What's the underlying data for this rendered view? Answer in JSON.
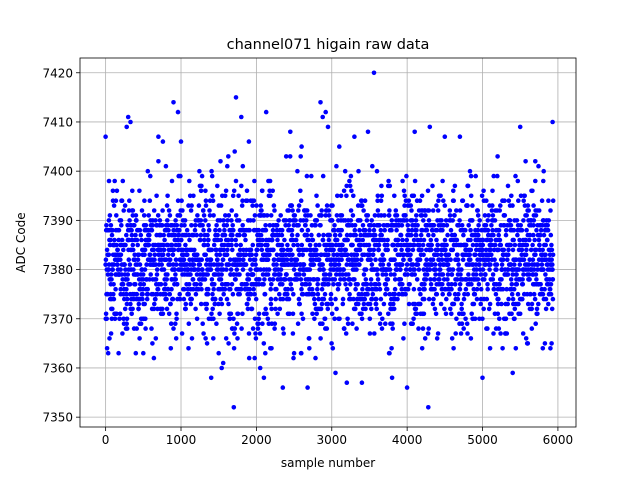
{
  "chart_data": {
    "type": "scatter",
    "title": "channel071 higain raw data",
    "xlabel": "sample number",
    "ylabel": "ADC Code",
    "xlim": [
      -340,
      6240
    ],
    "ylim": [
      7348,
      7423
    ],
    "xticks": [
      0,
      1000,
      2000,
      3000,
      4000,
      5000,
      6000
    ],
    "xtick_labels": [
      "0",
      "1000",
      "2000",
      "3000",
      "4000",
      "5000",
      "6000"
    ],
    "yticks": [
      7350,
      7360,
      7370,
      7380,
      7390,
      7400,
      7410,
      7420
    ],
    "ytick_labels": [
      "7350",
      "7360",
      "7370",
      "7380",
      "7390",
      "7400",
      "7410",
      "7420"
    ],
    "grid": true,
    "marker_color": "#0000ff",
    "series": [
      {
        "marker": "circle",
        "n_samples": 5940,
        "x_step": 1,
        "bulk_mean": 7382,
        "bulk_std": 7,
        "x": [
          0,
          20,
          45,
          75,
          100,
          130,
          165,
          200,
          240,
          280,
          300,
          330,
          360,
          400,
          450,
          500,
          560,
          620,
          700,
          760,
          820,
          880,
          900,
          960,
          1000,
          1100,
          1250,
          1400,
          1500,
          1540,
          1560,
          1600,
          1700,
          1730,
          1750,
          1800,
          1900,
          2000,
          2050,
          2100,
          2130,
          2200,
          2350,
          2450,
          2500,
          2600,
          2680,
          2850,
          2880,
          2920,
          2950,
          3050,
          3100,
          3200,
          3300,
          3400,
          3480,
          3560,
          3600,
          3800,
          3850,
          3950,
          4000,
          4100,
          4200,
          4280,
          4300,
          4500,
          4700,
          4800,
          5000,
          5100,
          5200,
          5400,
          5500,
          5540,
          5600,
          5700,
          5800,
          5900,
          5930
        ],
        "y": [
          7407,
          7364,
          7398,
          7372,
          7385,
          7371,
          7388,
          7375,
          7392,
          7409,
          7411,
          7410,
          7385,
          7363,
          7366,
          7363,
          7400,
          7365,
          7407,
          7406,
          7376,
          7398,
          7414,
          7412,
          7406,
          7364,
          7397,
          7358,
          7363,
          7360,
          7361,
          7366,
          7352,
          7415,
          7366,
          7411,
          7406,
          7378,
          7360,
          7358,
          7412,
          7364,
          7356,
          7408,
          7363,
          7405,
          7356,
          7414,
          7411,
          7412,
          7409,
          7359,
          7405,
          7357,
          7407,
          7357,
          7408,
          7420,
          7400,
          7358,
          7386,
          7366,
          7356,
          7408,
          7364,
          7352,
          7409,
          7407,
          7407,
          7367,
          7358,
          7364,
          7403,
          7359,
          7409,
          7367,
          7365,
          7402,
          7364,
          7364,
          7410
        ]
      }
    ]
  }
}
